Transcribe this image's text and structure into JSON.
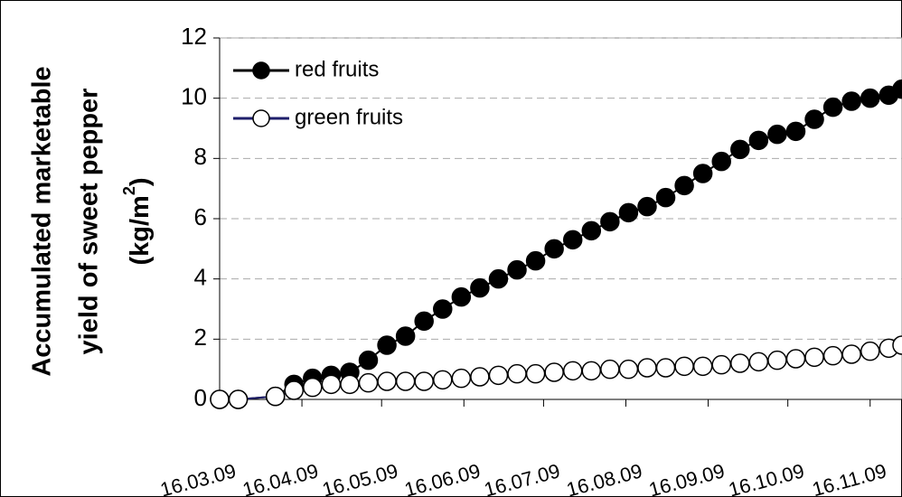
{
  "chart_data": {
    "type": "line",
    "y_label": {
      "lines": [
        "Accumulated marketable",
        "yield of sweet pepper"
      ],
      "unit": "(kg/m",
      "unit_sup": "2",
      "unit_end": ")"
    },
    "x": [
      "2009-03-16",
      "2009-03-23",
      "2009-04-06",
      "2009-04-13",
      "2009-04-20",
      "2009-04-27",
      "2009-05-04",
      "2009-05-11",
      "2009-05-18",
      "2009-05-25",
      "2009-06-01",
      "2009-06-08",
      "2009-06-15",
      "2009-06-22",
      "2009-06-29",
      "2009-07-06",
      "2009-07-13",
      "2009-07-20",
      "2009-07-27",
      "2009-08-03",
      "2009-08-10",
      "2009-08-17",
      "2009-08-24",
      "2009-08-31",
      "2009-09-07",
      "2009-09-14",
      "2009-09-21",
      "2009-09-28",
      "2009-10-05",
      "2009-10-12",
      "2009-10-19",
      "2009-10-26",
      "2009-11-02",
      "2009-11-09",
      "2009-11-16",
      "2009-11-23",
      "2009-11-28"
    ],
    "series": [
      {
        "name": "red fruits",
        "color": "#000000",
        "marker_fill": "#000000",
        "values": [
          0,
          0,
          0.1,
          0.5,
          0.7,
          0.8,
          0.9,
          1.3,
          1.8,
          2.1,
          2.6,
          3.0,
          3.4,
          3.7,
          4.0,
          4.3,
          4.6,
          5.0,
          5.3,
          5.6,
          5.9,
          6.2,
          6.4,
          6.7,
          7.1,
          7.5,
          7.9,
          8.3,
          8.6,
          8.8,
          8.9,
          9.3,
          9.7,
          9.9,
          10.0,
          10.1,
          10.3
        ]
      },
      {
        "name": "green fruits",
        "color": "#1f1f6b",
        "marker_fill": "#ffffff",
        "values": [
          0,
          0,
          0.1,
          0.3,
          0.4,
          0.5,
          0.5,
          0.55,
          0.6,
          0.6,
          0.6,
          0.65,
          0.7,
          0.75,
          0.8,
          0.85,
          0.85,
          0.9,
          0.95,
          0.95,
          1.0,
          1.0,
          1.05,
          1.05,
          1.1,
          1.1,
          1.15,
          1.2,
          1.25,
          1.3,
          1.35,
          1.4,
          1.45,
          1.5,
          1.6,
          1.7,
          1.8
        ]
      }
    ],
    "xlim": [
      "2009-03-16",
      "2009-11-28"
    ],
    "xticks": [
      {
        "value": "2009-03-16",
        "label": "16.03.09"
      },
      {
        "value": "2009-04-16",
        "label": "16.04.09"
      },
      {
        "value": "2009-05-16",
        "label": "16.05.09"
      },
      {
        "value": "2009-06-16",
        "label": "16.06.09"
      },
      {
        "value": "2009-07-16",
        "label": "16.07.09"
      },
      {
        "value": "2009-08-16",
        "label": "16.08.09"
      },
      {
        "value": "2009-09-16",
        "label": "16.09.09"
      },
      {
        "value": "2009-10-16",
        "label": "16.10.09"
      },
      {
        "value": "2009-11-16",
        "label": "16.11.09"
      }
    ],
    "ylim": [
      0,
      12
    ],
    "yticks": [
      0,
      2,
      4,
      6,
      8,
      10,
      12
    ],
    "grid": true,
    "legend": "upper left"
  }
}
